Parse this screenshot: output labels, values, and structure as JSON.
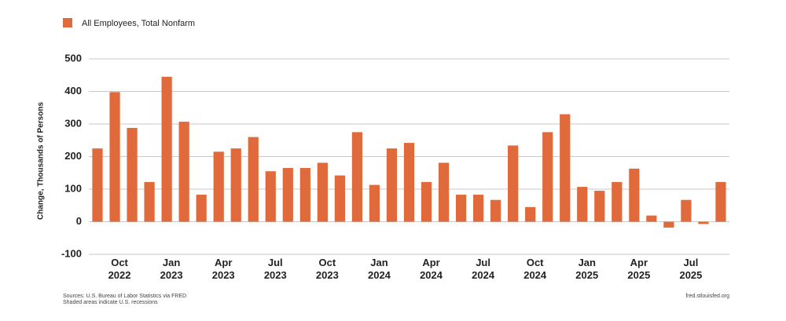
{
  "chart_data": {
    "type": "bar",
    "legend_label": "All Employees, Total Nonfarm",
    "ylabel": "Change, Thousands of Persons",
    "source": "Sources: U.S. Bureau of Labor Statistics via FRED",
    "note": "Shaded areas indicate U.S. recessions",
    "credit": "fred.stlouisfed.org",
    "color": "#e06a3b",
    "categories": [
      null,
      "Oct 2022",
      null,
      null,
      "Jan 2023",
      null,
      null,
      "Apr 2023",
      null,
      null,
      "Jul 2023",
      null,
      null,
      "Oct 2023",
      null,
      null,
      "Jan 2024",
      null,
      null,
      "Apr 2024",
      null,
      null,
      "Jul 2024",
      null,
      null,
      "Oct 2024",
      null,
      null,
      "Jan 2025",
      null,
      null,
      "Apr 2025",
      null,
      null,
      "Jul 2025",
      null,
      null
    ],
    "values": [
      225,
      398,
      288,
      122,
      445,
      307,
      83,
      215,
      225,
      260,
      155,
      165,
      165,
      181,
      142,
      275,
      113,
      225,
      242,
      122,
      181,
      83,
      83,
      67,
      234,
      45,
      275,
      330,
      107,
      95,
      122,
      163,
      19,
      -18,
      67,
      -7,
      122
    ],
    "ylim": [
      -100,
      500
    ],
    "yticks": [
      -100,
      0,
      100,
      200,
      300,
      400,
      500
    ],
    "grid": true
  }
}
